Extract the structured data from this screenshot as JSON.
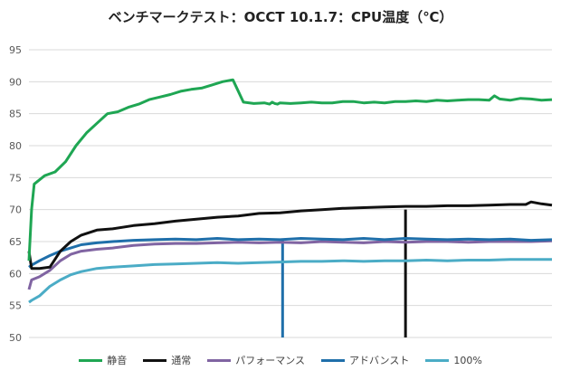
{
  "chart_data": {
    "type": "line",
    "title": "ベンチマークテスト：OCCT 10.1.7：CPU温度（℃）",
    "xlabel": "",
    "ylabel": "",
    "ylim": [
      50,
      95
    ],
    "yticks": [
      50,
      55,
      60,
      65,
      70,
      75,
      80,
      85,
      90,
      95
    ],
    "grid": true,
    "legend_position": "bottom",
    "x_range": [
      0,
      100
    ],
    "series": [
      {
        "name": "静音",
        "color": "#1fa653",
        "x": [
          0,
          0.5,
          1,
          3,
          5,
          7,
          9,
          11,
          13,
          15,
          17,
          19,
          21,
          23,
          25,
          27,
          29,
          31,
          33,
          35,
          37,
          39,
          41,
          43,
          45,
          46,
          46.5,
          47,
          47.5,
          48,
          50,
          52,
          54,
          56,
          58,
          60,
          62,
          64,
          66,
          68,
          70,
          72,
          74,
          76,
          78,
          80,
          82,
          84,
          86,
          88,
          89,
          90,
          92,
          94,
          96,
          98,
          100
        ],
        "values": [
          62,
          70,
          74,
          75.3,
          75.9,
          77.5,
          80,
          82,
          83.5,
          85,
          85.3,
          86,
          86.5,
          87.2,
          87.6,
          88,
          88.5,
          88.8,
          89,
          89.5,
          90,
          90.3,
          86.8,
          86.6,
          86.7,
          86.5,
          86.8,
          86.6,
          86.5,
          86.7,
          86.6,
          86.7,
          86.8,
          86.7,
          86.7,
          86.9,
          86.9,
          86.7,
          86.8,
          86.7,
          86.9,
          86.9,
          87,
          86.9,
          87.1,
          87,
          87.1,
          87.2,
          87.2,
          87.1,
          87.8,
          87.3,
          87.1,
          87.4,
          87.3,
          87.1,
          87.2
        ]
      },
      {
        "name": "通常",
        "color": "#111111",
        "x": [
          0,
          0.5,
          2,
          4,
          6,
          8,
          10,
          13,
          16,
          20,
          24,
          28,
          32,
          36,
          40,
          44,
          48,
          52,
          56,
          60,
          64,
          68,
          72,
          76,
          80,
          84,
          88,
          92,
          95,
          96,
          98,
          100
        ],
        "values": [
          63.5,
          60.8,
          60.8,
          61,
          63.5,
          65,
          66,
          66.8,
          67,
          67.5,
          67.8,
          68.2,
          68.5,
          68.8,
          69,
          69.4,
          69.5,
          69.8,
          70,
          70.2,
          70.3,
          70.4,
          70.5,
          70.5,
          70.6,
          70.6,
          70.7,
          70.8,
          70.8,
          71.2,
          70.9,
          70.7
        ]
      },
      {
        "name": "パフォーマンス",
        "color": "#8064a2",
        "x": [
          0,
          0.5,
          2,
          4,
          6,
          8,
          10,
          13,
          16,
          20,
          24,
          28,
          32,
          36,
          40,
          44,
          48,
          52,
          56,
          60,
          64,
          68,
          72,
          76,
          80,
          84,
          88,
          92,
          96,
          100
        ],
        "values": [
          57.5,
          59,
          59.5,
          60.5,
          62,
          63,
          63.5,
          63.8,
          64,
          64.4,
          64.6,
          64.7,
          64.7,
          64.8,
          64.9,
          64.8,
          64.9,
          64.8,
          65,
          64.9,
          64.8,
          65,
          64.9,
          65,
          65,
          64.9,
          65,
          65,
          65,
          65.1
        ]
      },
      {
        "name": "アドバンスト",
        "color": "#1f6faa",
        "x": [
          0,
          0.5,
          2,
          4,
          6,
          8,
          10,
          13,
          16,
          20,
          24,
          28,
          32,
          36,
          40,
          44,
          48,
          52,
          56,
          60,
          64,
          68,
          72,
          76,
          80,
          84,
          88,
          92,
          96,
          100
        ],
        "values": [
          61,
          61.3,
          62,
          62.8,
          63.5,
          64,
          64.5,
          64.8,
          65,
          65.2,
          65.3,
          65.4,
          65.3,
          65.5,
          65.3,
          65.4,
          65.3,
          65.5,
          65.4,
          65.3,
          65.5,
          65.3,
          65.5,
          65.4,
          65.3,
          65.4,
          65.3,
          65.4,
          65.2,
          65.3
        ]
      },
      {
        "name": "100%",
        "color": "#4bacc6",
        "x": [
          0,
          0.5,
          2,
          4,
          6,
          8,
          10,
          13,
          16,
          20,
          24,
          28,
          32,
          36,
          40,
          44,
          48,
          52,
          56,
          60,
          64,
          68,
          72,
          76,
          80,
          84,
          88,
          92,
          96,
          100
        ],
        "values": [
          55.5,
          55.8,
          56.5,
          58,
          59,
          59.8,
          60.3,
          60.8,
          61,
          61.2,
          61.4,
          61.5,
          61.6,
          61.7,
          61.6,
          61.7,
          61.8,
          61.9,
          61.9,
          62,
          61.9,
          62,
          62,
          62.1,
          62,
          62.1,
          62.1,
          62.2,
          62.2,
          62.2
        ]
      }
    ],
    "reference_lines": [
      {
        "x": 48.5,
        "color": "#1f6faa"
      },
      {
        "x": 72,
        "color": "#111111"
      }
    ]
  }
}
